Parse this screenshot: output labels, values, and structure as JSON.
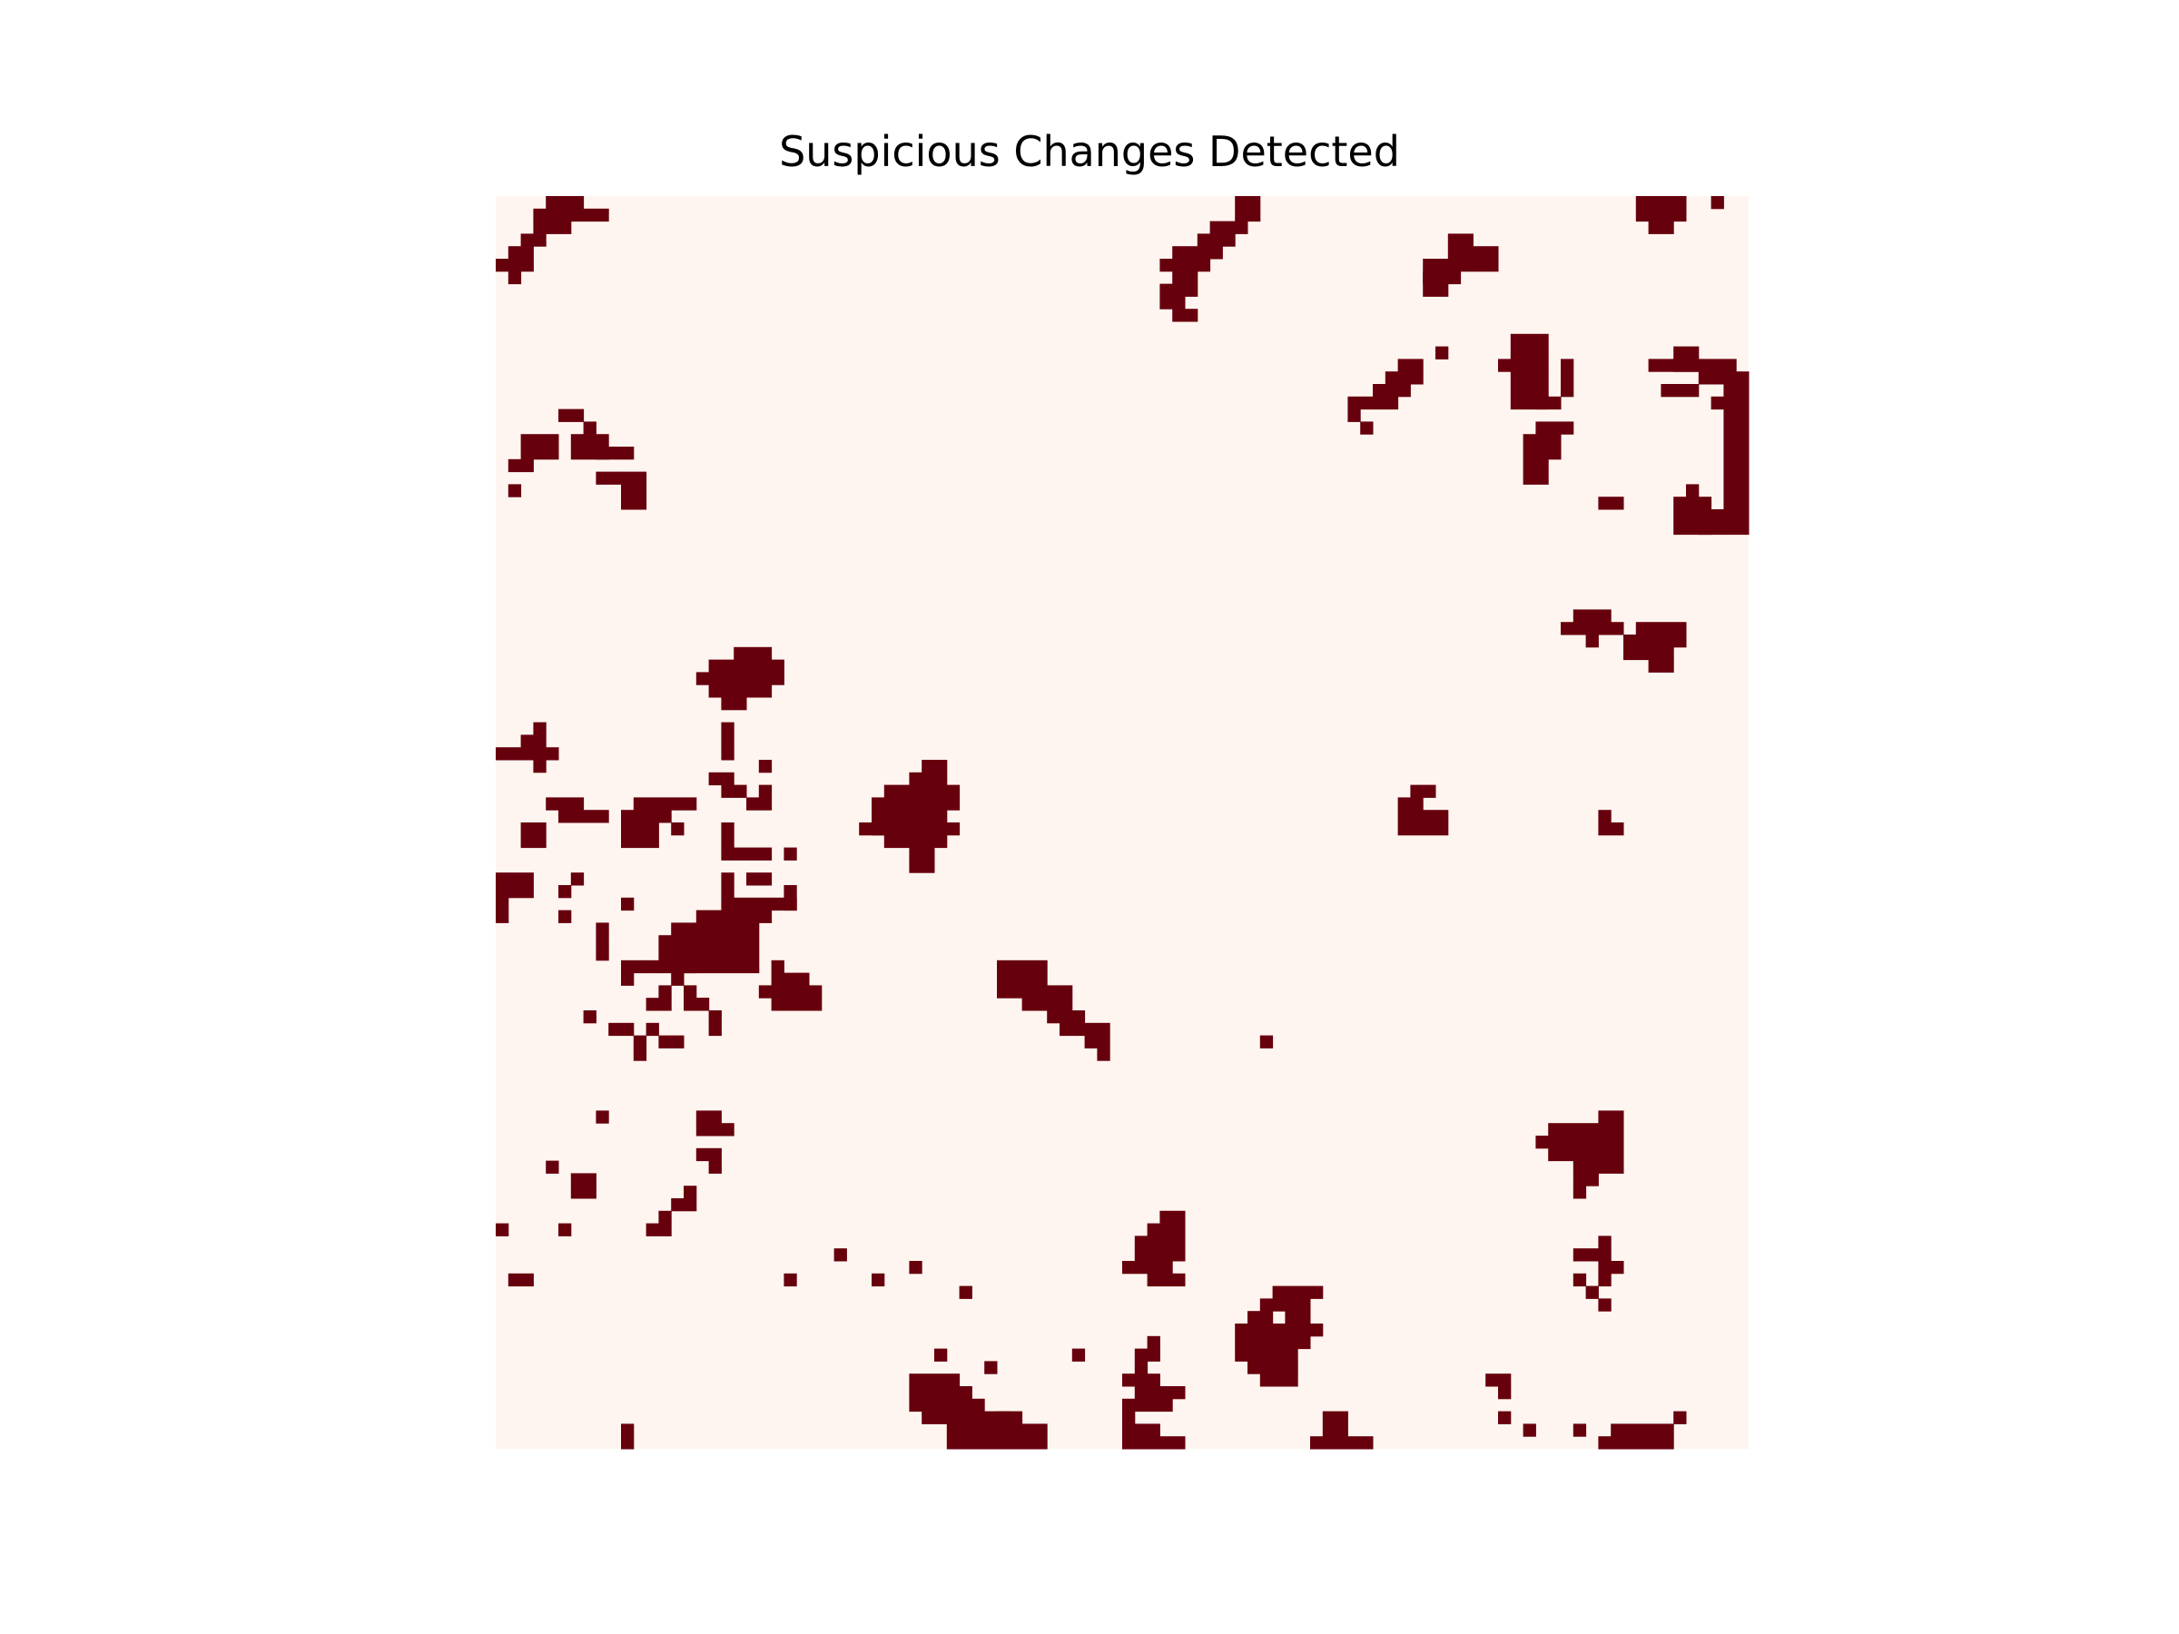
{
  "chart_data": {
    "type": "heatmap",
    "title": "Suspicious Changes Detected",
    "xlabel": "",
    "ylabel": "",
    "axes_visible": false,
    "colormap": "Reds",
    "grid_shape": [
      100,
      100
    ],
    "values": "binary (1 = change detected, 0 = none)",
    "colors": {
      "zero": "#fff5f0",
      "one": "#67000d"
    },
    "rows": [
      "....####........................................................................................",
      "...#######..............................................................................................",
      "...#######...................................................................................................",
      "..####......................................................................................................",
      "..##........................................................................................................",
      "##..........................................................................................................",
      ".#..........................................................................................................."
    ],
    "clusters": [
      [
        0,
        0,
        "....####......",
        "...#######....",
        "...#######....",
        "..####........",
        "..##..........",
        "##............",
        ".#............"
      ]
    ]
  }
}
